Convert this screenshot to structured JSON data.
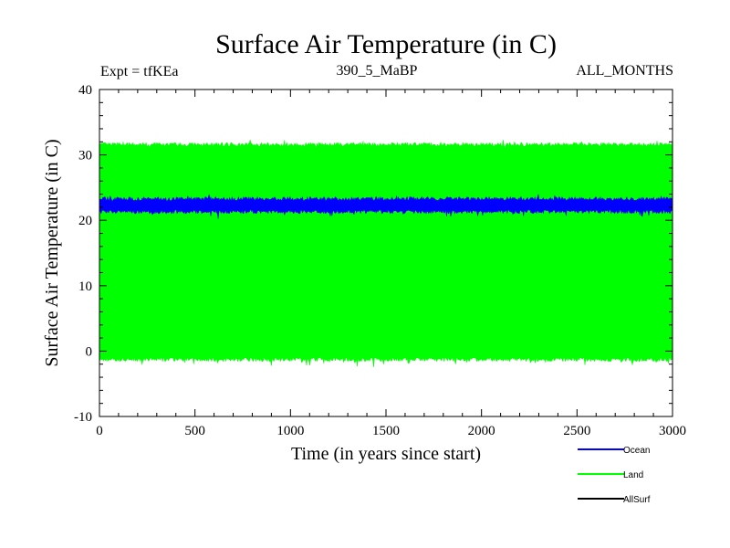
{
  "chart_data": {
    "type": "line",
    "title": "Surface Air Temperature (in C)",
    "subtitle_left": "Expt = tfKEa",
    "subtitle_center": "390_5_MaBP",
    "subtitle_right": "ALL_MONTHS",
    "xlabel": "Time (in years since start)",
    "ylabel": "Surface Air Temperature (in C)",
    "xlim": [
      0,
      3000
    ],
    "ylim": [
      -10,
      40
    ],
    "x_ticks": [
      0,
      500,
      1000,
      1500,
      2000,
      2500,
      3000
    ],
    "y_ticks": [
      -10,
      0,
      10,
      20,
      30,
      40
    ],
    "grid": false,
    "legend_position": "bottom-right",
    "series": [
      {
        "name": "Ocean",
        "color": "#0000ff",
        "low": 21.3,
        "high": 23.3,
        "mean": 22.3
      },
      {
        "name": "Land",
        "color": "#00ff00",
        "low": -1.3,
        "high": 31.6,
        "mean": 15.2
      },
      {
        "name": "AllSurf",
        "color": "#000000"
      }
    ]
  }
}
